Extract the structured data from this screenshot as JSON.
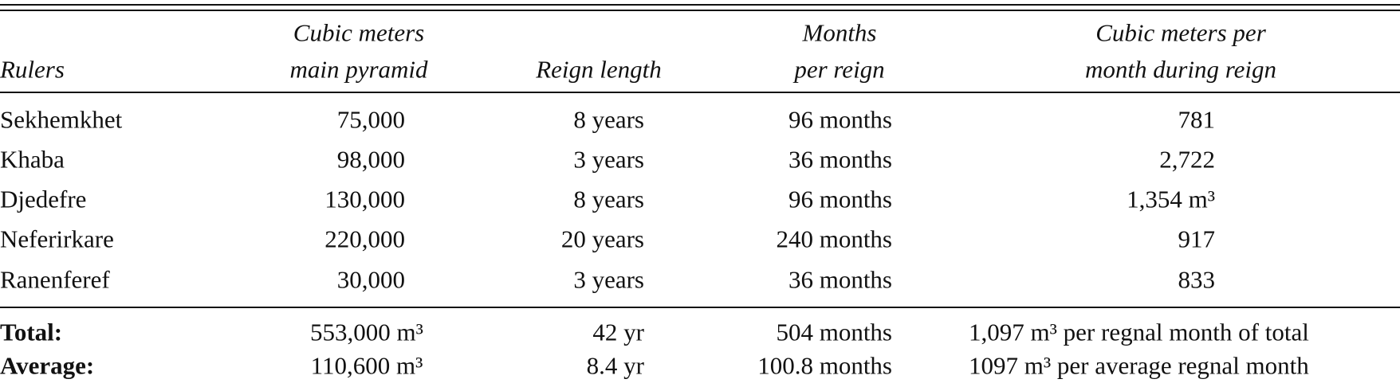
{
  "table": {
    "header": [
      [
        "Rulers"
      ],
      [
        "Cubic meters",
        "main pyramid"
      ],
      [
        "Reign length"
      ],
      [
        "Months",
        "per reign"
      ],
      [
        "Cubic meters per",
        "month during reign"
      ]
    ],
    "rows": [
      [
        "Sekhemkhet",
        "75,000",
        "8 years",
        "96 months",
        "781"
      ],
      [
        "Khaba",
        "98,000",
        "3 years",
        "36 months",
        "2,722"
      ],
      [
        "Djedefre",
        "130,000",
        "8 years",
        "96 months",
        "1,354 m³"
      ],
      [
        "Neferirkare",
        "220,000",
        "20 years",
        "240 months",
        "917"
      ],
      [
        "Ranenferef",
        "30,000",
        "3 years",
        "36 months",
        "833"
      ]
    ],
    "summary": [
      [
        "Total:",
        "553,000 m³",
        "42 yr",
        "504 months",
        "1,097 m³ per regnal month of total"
      ],
      [
        "Average:",
        "110,600 m³",
        "8.4 yr",
        "100.8 months",
        "1097 m³ per average regnal month"
      ]
    ]
  }
}
